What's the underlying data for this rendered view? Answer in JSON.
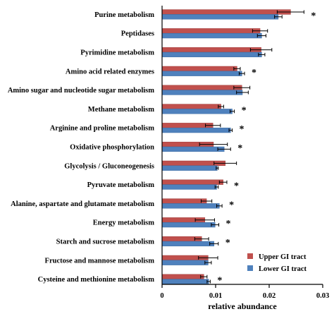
{
  "chart_data": {
    "type": "bar",
    "orientation": "horizontal",
    "title": "",
    "xlabel": "relative abundance",
    "ylabel": "",
    "xlim": [
      0,
      0.03
    ],
    "xticks": [
      0,
      0.01,
      0.02,
      0.03
    ],
    "xtick_labels": [
      "0",
      "0.01",
      "0.02",
      "0.03"
    ],
    "categories": [
      "Purine metabolism",
      "Peptidases",
      "Pyrimidine metabolism",
      "Amino acid related enzymes",
      "Amino sugar and nucleotide sugar metabolism",
      "Methane metabolism",
      "Arginine and proline metabolism",
      "Oxidative phosphorylation",
      "Glycolysis / Gluconeogenesis",
      "Pyruvate metabolism",
      "Alanine, aspartate and glutamate metabolism",
      "Energy metabolism",
      "Starch and sucrose metabolism",
      "Fructose and mannose metabolism",
      "Cysteine and methionine metabolism"
    ],
    "significance": [
      "*",
      "",
      "",
      "*",
      "",
      "*",
      "*",
      "*",
      "",
      "*",
      "*",
      "*",
      "*",
      "",
      "*"
    ],
    "series": [
      {
        "name": "Upper GI tract",
        "color": "#c0504d",
        "values": [
          0.024,
          0.0183,
          0.0185,
          0.014,
          0.0149,
          0.011,
          0.0095,
          0.0096,
          0.0118,
          0.0114,
          0.0083,
          0.008,
          0.0074,
          0.0086,
          0.0078
        ],
        "errors": [
          0.0025,
          0.0014,
          0.002,
          0.0006,
          0.0015,
          0.0005,
          0.0014,
          0.0026,
          0.0021,
          0.0007,
          0.001,
          0.0018,
          0.0013,
          0.0018,
          0.0006
        ]
      },
      {
        "name": "Lower GI tract",
        "color": "#4f81bd",
        "values": [
          0.0217,
          0.0186,
          0.0186,
          0.0149,
          0.015,
          0.0131,
          0.0128,
          0.0116,
          0.0103,
          0.0102,
          0.0107,
          0.0099,
          0.0097,
          0.0086,
          0.0087
        ],
        "errors": [
          0.0007,
          0.0008,
          0.0006,
          0.0005,
          0.0011,
          0.0004,
          0.0003,
          0.0012,
          0.0002,
          0.0003,
          0.0005,
          0.0007,
          0.0008,
          0.0006,
          0.0003
        ]
      }
    ],
    "legend_position": "bottom-right",
    "grid": false
  }
}
